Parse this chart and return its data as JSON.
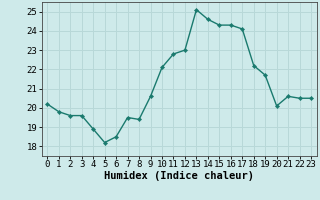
{
  "x": [
    0,
    1,
    2,
    3,
    4,
    5,
    6,
    7,
    8,
    9,
    10,
    11,
    12,
    13,
    14,
    15,
    16,
    17,
    18,
    19,
    20,
    21,
    22,
    23
  ],
  "y": [
    20.2,
    19.8,
    19.6,
    19.6,
    18.9,
    18.2,
    18.5,
    19.5,
    19.4,
    20.6,
    22.1,
    22.8,
    23.0,
    25.1,
    24.6,
    24.3,
    24.3,
    24.1,
    22.2,
    21.7,
    20.1,
    20.6,
    20.5,
    20.5
  ],
  "line_color": "#1a7a6e",
  "marker_color": "#1a7a6e",
  "bg_color": "#ceeaea",
  "grid_color": "#b8d8d8",
  "xlabel": "Humidex (Indice chaleur)",
  "xlim": [
    -0.5,
    23.5
  ],
  "ylim": [
    17.5,
    25.5
  ],
  "yticks": [
    18,
    19,
    20,
    21,
    22,
    23,
    24,
    25
  ],
  "xticks": [
    0,
    1,
    2,
    3,
    4,
    5,
    6,
    7,
    8,
    9,
    10,
    11,
    12,
    13,
    14,
    15,
    16,
    17,
    18,
    19,
    20,
    21,
    22,
    23
  ],
  "figsize": [
    3.2,
    2.0
  ],
  "dpi": 100,
  "tick_fontsize": 6.5,
  "xlabel_fontsize": 7.5
}
